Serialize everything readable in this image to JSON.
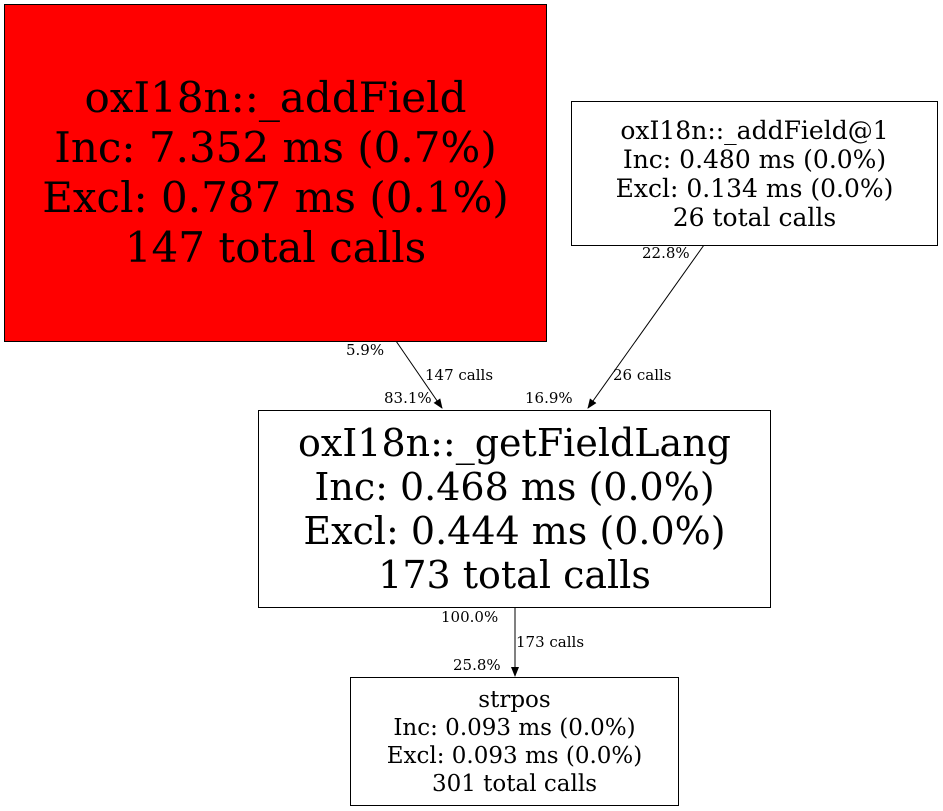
{
  "nodes": {
    "addField": {
      "name": "oxI18n::_addField",
      "inc": "Inc: 7.352 ms (0.7%)",
      "excl": "Excl: 0.787 ms (0.1%)",
      "calls": "147 total calls",
      "fill": "#ff0000"
    },
    "addField1": {
      "name": "oxI18n::_addField@1",
      "inc": "Inc: 0.480 ms (0.0%)",
      "excl": "Excl: 0.134 ms (0.0%)",
      "calls": "26 total calls",
      "fill": "#ffffff"
    },
    "getFieldLang": {
      "name": "oxI18n::_getFieldLang",
      "inc": "Inc: 0.468 ms (0.0%)",
      "excl": "Excl: 0.444 ms (0.0%)",
      "calls": "173 total calls",
      "fill": "#ffffff"
    },
    "strpos": {
      "name": "strpos",
      "inc": "Inc: 0.093 ms (0.0%)",
      "excl": "Excl: 0.093 ms (0.0%)",
      "calls": "301 total calls",
      "fill": "#ffffff"
    }
  },
  "edges": [
    {
      "from": "oxI18n::_addField",
      "to": "oxI18n::_getFieldLang",
      "tail": "5.9%",
      "label": "147 calls",
      "head": "83.1%"
    },
    {
      "from": "oxI18n::_addField@1",
      "to": "oxI18n::_getFieldLang",
      "tail": "22.8%",
      "label": "26 calls",
      "head": "16.9%"
    },
    {
      "from": "oxI18n::_getFieldLang",
      "to": "strpos",
      "tail": "100.0%",
      "label": "173 calls",
      "head": "25.8%"
    }
  ]
}
